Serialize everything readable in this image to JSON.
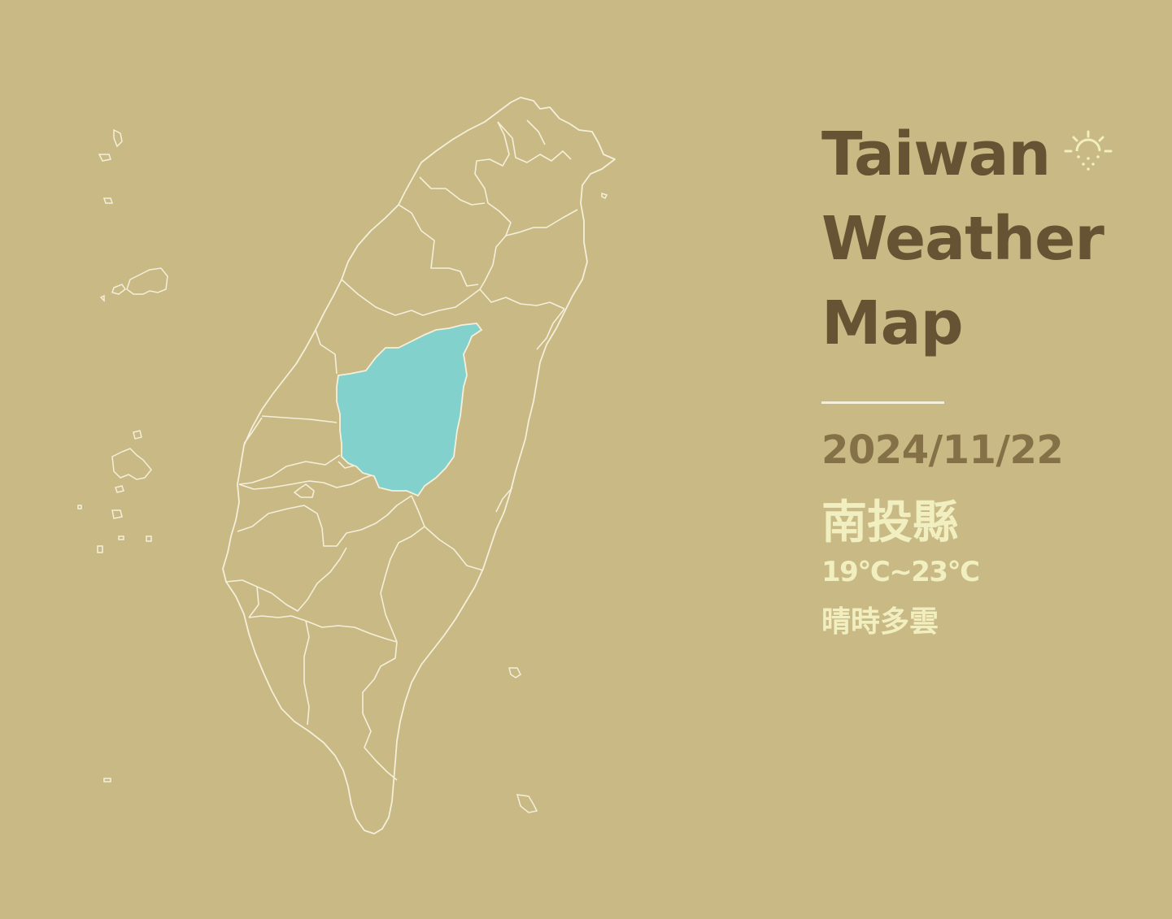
{
  "title": {
    "line1": "Taiwan",
    "line2": "Weather",
    "line3": "Map"
  },
  "weather_icon": "sun-icon",
  "date": "2024/11/22",
  "selected_county": "南投縣",
  "temperature": "19°C~23°C",
  "condition": "晴時多雲",
  "colors": {
    "background": "#c9b984",
    "title": "#655333",
    "date": "#847147",
    "info_text": "#f1efc0",
    "border": "#f4efda",
    "highlight": "#83d1cc"
  }
}
